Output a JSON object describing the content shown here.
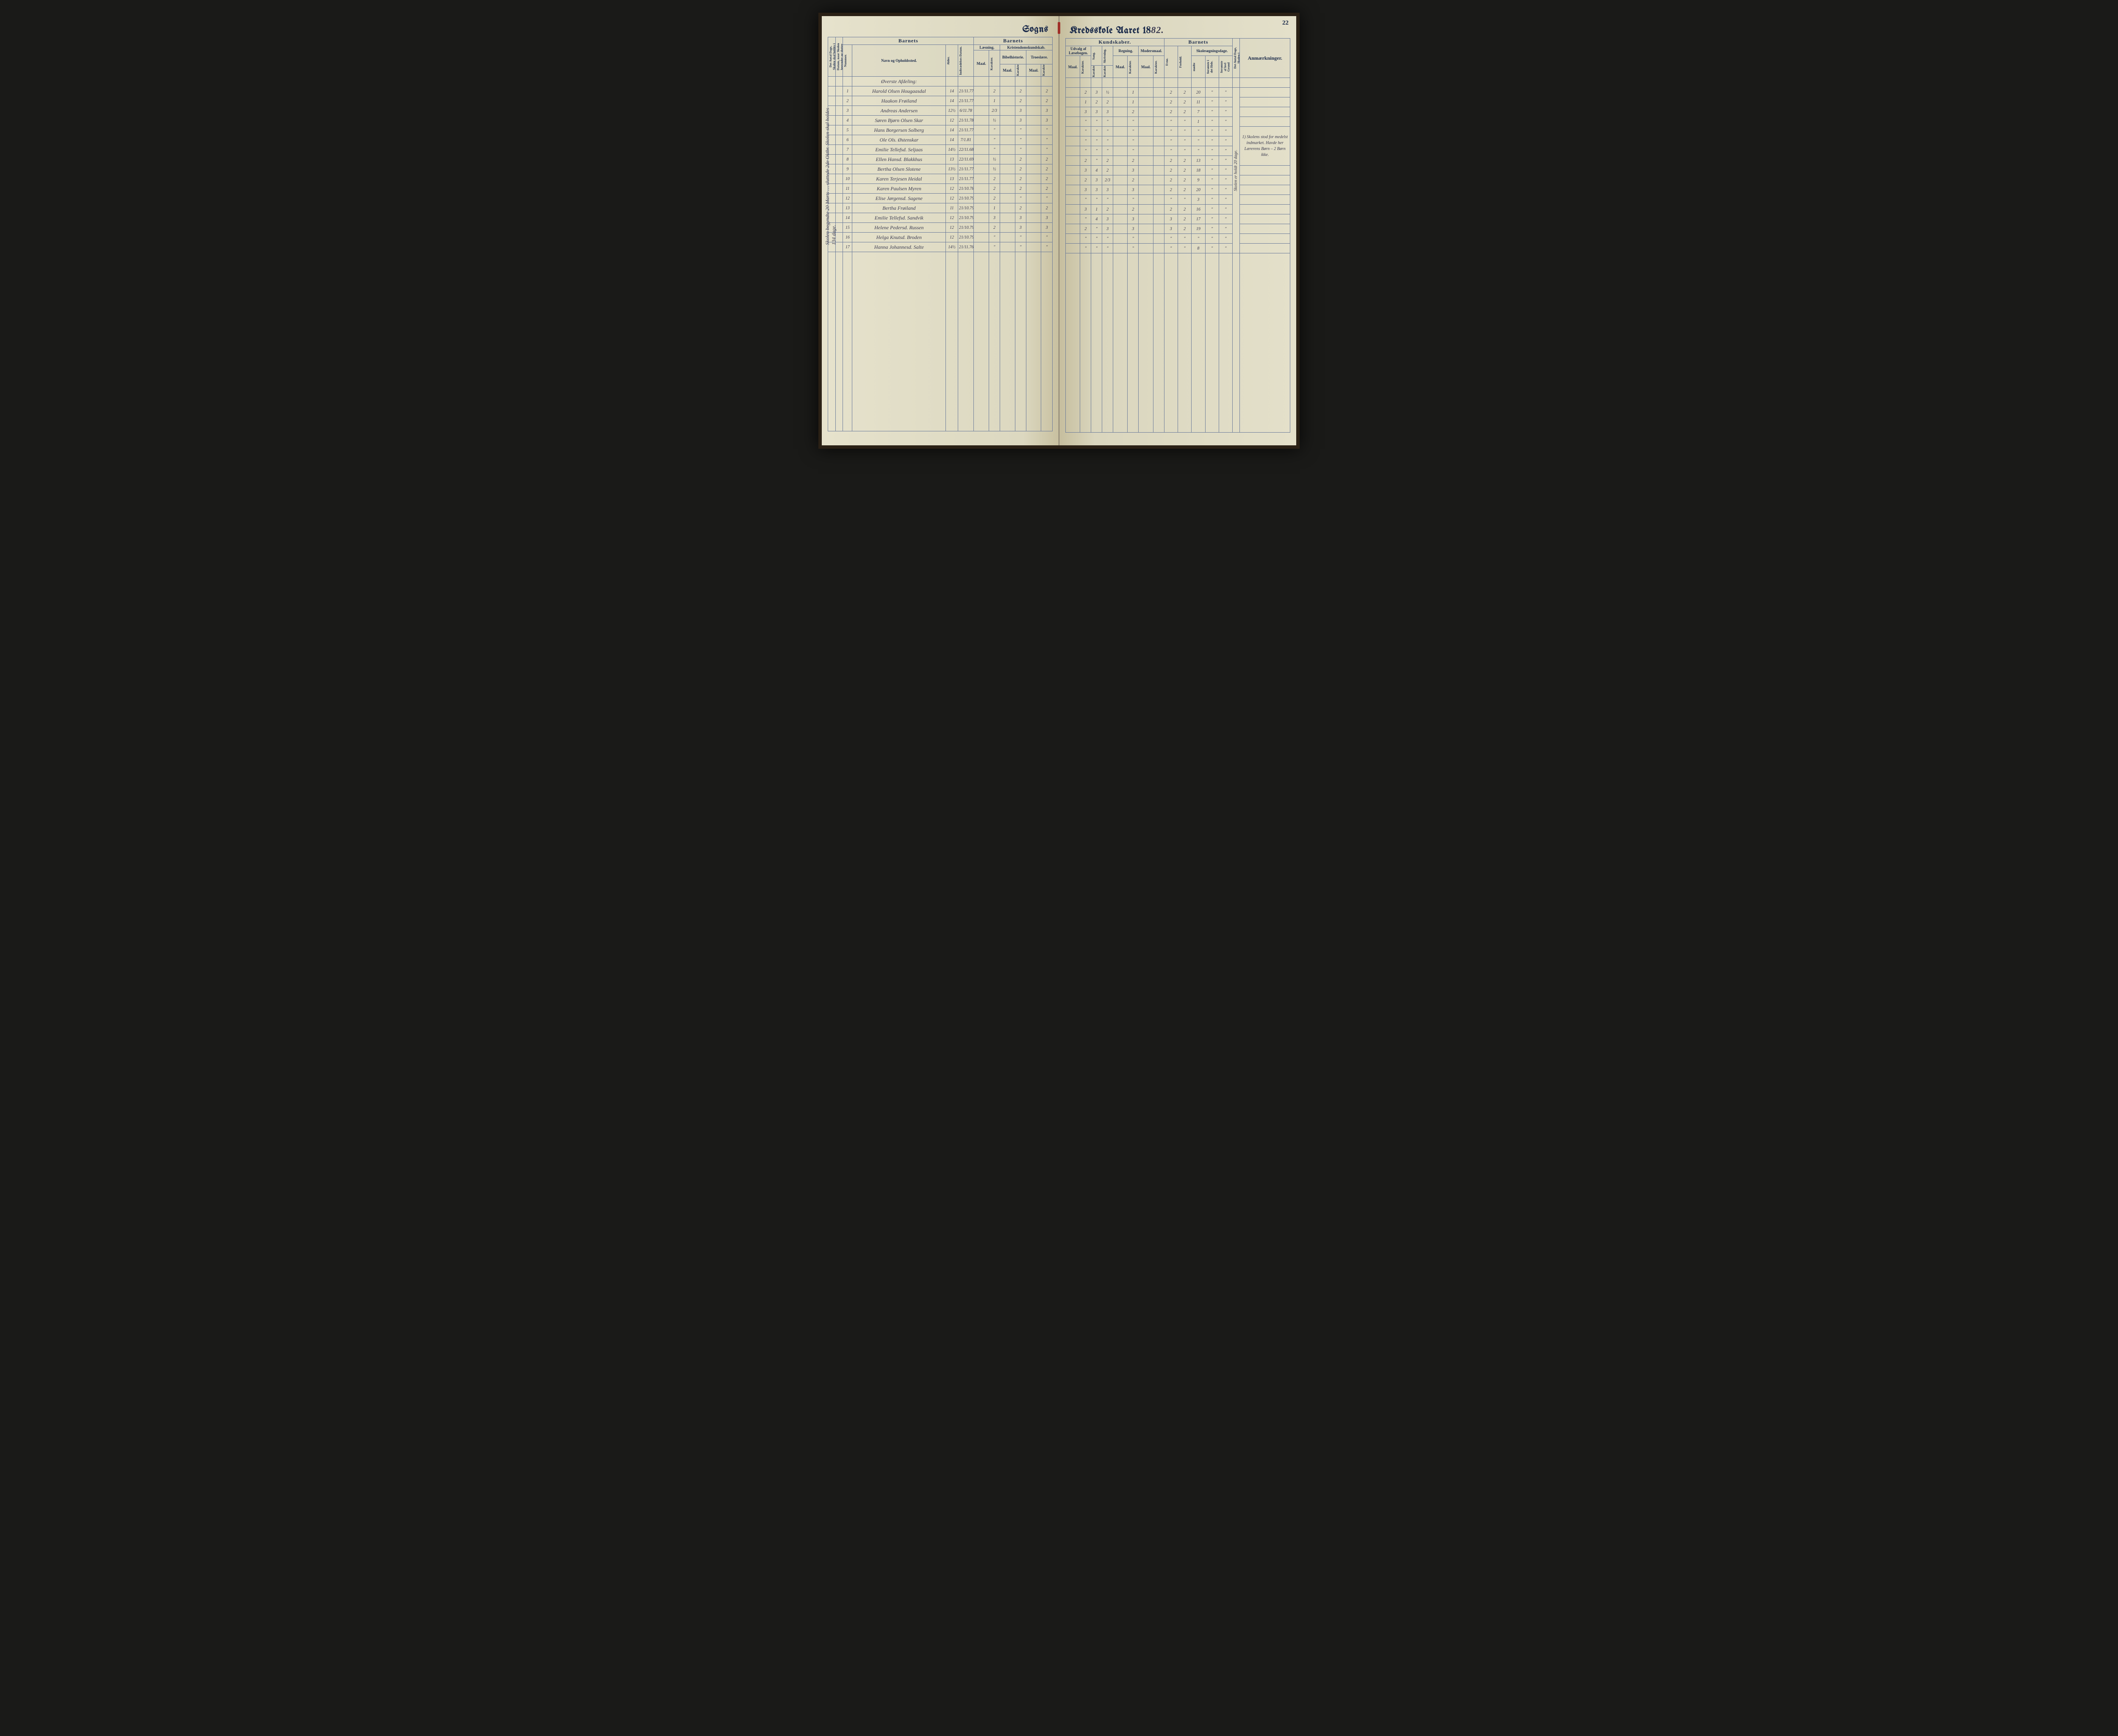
{
  "page_number": "22",
  "title_left": "Sogns",
  "title_right_prefix": "Kredsskole Aaret 18",
  "title_year_suffix": "82.",
  "margin_note_left": "Skolen begyndte 20 Marts … sluttede 2de Oktbr. Skolen skal holdes 134 dage.",
  "colors": {
    "ink_print": "#1a2a4a",
    "ink_hand": "#3a3a50",
    "rule": "#6a7a9a",
    "paper_top": "#e8e4d0",
    "paper_bot": "#d0ccb0",
    "ribbon": "#a03028",
    "desk": "#1a1a18"
  },
  "headers": {
    "left_vcol1": "Det Antal Dage, Skolen skal holdes i Kredsen.",
    "left_vcol2": "Datum, naar Skolen begynder og slutter hver Omgang.",
    "num": "Nummer.",
    "navn": "Navn og Opholdssted.",
    "alder": "Alder.",
    "indtr": "Indtrædelses-Datum.",
    "barnets": "Barnets",
    "laesning": "Læsning.",
    "kristen": "Kristendomskundskab.",
    "bibel": "Bibelhistorie.",
    "troes": "Troeslære.",
    "maal": "Maal.",
    "karakter": "Karakter.",
    "kundskaber": "Kundskaber.",
    "udvalg": "Udvalg af Læsebogen.",
    "sang": "Sang.",
    "skriv": "Skrivning.",
    "regning": "Regning.",
    "modersmaal": "Modersmaal.",
    "evne": "Evne.",
    "forhold": "Forhold.",
    "skoles": "Skolesøgningsdage.",
    "modte": "mødte",
    "fors_hele": "forsømte i det Hele.",
    "fors_lov": "forsømte af lovl Grund",
    "right_v1": "Det Antal Dage, Skolen i Virkeligheden er holdt.",
    "anm": "Anmærkninger."
  },
  "section_row_label": "Øverste Afdeling:",
  "remarks_note": "1) Skolens stod for medelst indmarket. Havde her Lærerens Børn – 2 Børn ikke.",
  "vert_col_note_right": "Skolen er holdt 20 dage.",
  "rows": [
    {
      "n": "1",
      "name": "Harold Olsen Hougaasdal",
      "age": "14",
      "date": "21/11.77",
      "l_m": "",
      "l_k": "2",
      "b_m": "",
      "b_k": "2",
      "t_m": "",
      "t_k": "2",
      "u_m": "",
      "u_k": "2",
      "sang": "3",
      "skr": "½",
      "r_m": "",
      "r_k": "1",
      "mm_m": "",
      "mm_k": "",
      "ev": "2",
      "fo": "2",
      "md": "20",
      "fh": "\"",
      "fl": "\""
    },
    {
      "n": "2",
      "name": "Haakon Frøiland",
      "age": "14",
      "date": "21/11.77",
      "l_m": "",
      "l_k": "1",
      "b_m": "",
      "b_k": "2",
      "t_m": "",
      "t_k": "2",
      "u_m": "",
      "u_k": "1",
      "sang": "2",
      "skr": "2",
      "r_m": "",
      "r_k": "1",
      "mm_m": "",
      "mm_k": "",
      "ev": "2",
      "fo": "2",
      "md": "11",
      "fh": "\"",
      "fl": "\""
    },
    {
      "n": "3",
      "name": "Andreas Andersen",
      "age": "12½",
      "date": "6/11.78",
      "l_m": "",
      "l_k": "2/3",
      "b_m": "",
      "b_k": "3",
      "t_m": "",
      "t_k": "3",
      "u_m": "",
      "u_k": "3",
      "sang": "3",
      "skr": "3",
      "r_m": "",
      "r_k": "2",
      "mm_m": "",
      "mm_k": "",
      "ev": "2",
      "fo": "2",
      "md": "7",
      "fh": "\"",
      "fl": "\""
    },
    {
      "n": "4",
      "name": "Søren Bjørn Olsen Skar",
      "age": "12",
      "date": "21/11.78",
      "l_m": "",
      "l_k": "½",
      "b_m": "",
      "b_k": "3",
      "t_m": "",
      "t_k": "3",
      "u_m": "",
      "u_k": "\"",
      "sang": "\"",
      "skr": "\"",
      "r_m": "",
      "r_k": "\"",
      "mm_m": "",
      "mm_k": "",
      "ev": "\"",
      "fo": "\"",
      "md": "1",
      "fh": "\"",
      "fl": "\""
    },
    {
      "n": "5",
      "name": "Hans Borgersen Solberg",
      "age": "14",
      "date": "21/11.77",
      "l_m": "",
      "l_k": "\"",
      "b_m": "",
      "b_k": "\"",
      "t_m": "",
      "t_k": "\"",
      "u_m": "",
      "u_k": "\"",
      "sang": "\"",
      "skr": "\"",
      "r_m": "",
      "r_k": "\"",
      "mm_m": "",
      "mm_k": "",
      "ev": "\"",
      "fo": "\"",
      "md": "\"",
      "fh": "\"",
      "fl": "\""
    },
    {
      "n": "6",
      "name": "Ole Ols. Østenskar",
      "age": "14",
      "date": "7/1.81",
      "l_m": "",
      "l_k": "\"",
      "b_m": "",
      "b_k": "\"",
      "t_m": "",
      "t_k": "\"",
      "u_m": "",
      "u_k": "\"",
      "sang": "\"",
      "skr": "\"",
      "r_m": "",
      "r_k": "\"",
      "mm_m": "",
      "mm_k": "",
      "ev": "\"",
      "fo": "\"",
      "md": "\"",
      "fh": "\"",
      "fl": "\""
    },
    {
      "n": "7",
      "name": "Emilie Tellefsd. Seljaas",
      "age": "14½",
      "date": "22/11.68",
      "l_m": "",
      "l_k": "\"",
      "b_m": "",
      "b_k": "\"",
      "t_m": "",
      "t_k": "\"",
      "u_m": "",
      "u_k": "\"",
      "sang": "\"",
      "skr": "\"",
      "r_m": "",
      "r_k": "\"",
      "mm_m": "",
      "mm_k": "",
      "ev": "\"",
      "fo": "\"",
      "md": "\"",
      "fh": "\"",
      "fl": "\""
    },
    {
      "n": "8",
      "name": "Ellen Hansd. Blakkhus",
      "age": "13",
      "date": "22/11.69",
      "l_m": "",
      "l_k": "½",
      "b_m": "",
      "b_k": "2",
      "t_m": "",
      "t_k": "2",
      "u_m": "",
      "u_k": "2",
      "sang": "\"",
      "skr": "2",
      "r_m": "",
      "r_k": "2",
      "mm_m": "",
      "mm_k": "",
      "ev": "2",
      "fo": "2",
      "md": "13",
      "fh": "\"",
      "fl": "\""
    },
    {
      "n": "9",
      "name": "Bertha Olsen Slotene",
      "age": "13½",
      "date": "21/11.77",
      "l_m": "",
      "l_k": "½",
      "b_m": "",
      "b_k": "2",
      "t_m": "",
      "t_k": "2",
      "u_m": "",
      "u_k": "3",
      "sang": "4",
      "skr": "2",
      "r_m": "",
      "r_k": "3",
      "mm_m": "",
      "mm_k": "",
      "ev": "2",
      "fo": "2",
      "md": "18",
      "fh": "\"",
      "fl": "\""
    },
    {
      "n": "10",
      "name": "Karen Terjesen Heidal",
      "age": "13",
      "date": "21/11.77",
      "l_m": "",
      "l_k": "2",
      "b_m": "",
      "b_k": "2",
      "t_m": "",
      "t_k": "2",
      "u_m": "",
      "u_k": "2",
      "sang": "3",
      "skr": "2/3",
      "r_m": "",
      "r_k": "2",
      "mm_m": "",
      "mm_k": "",
      "ev": "2",
      "fo": "2",
      "md": "9",
      "fh": "\"",
      "fl": "\""
    },
    {
      "n": "11",
      "name": "Karen Paulsen Myren",
      "age": "12",
      "date": "21/10.78",
      "l_m": "",
      "l_k": "2",
      "b_m": "",
      "b_k": "2",
      "t_m": "",
      "t_k": "2",
      "u_m": "",
      "u_k": "3",
      "sang": "3",
      "skr": "3",
      "r_m": "",
      "r_k": "3",
      "mm_m": "",
      "mm_k": "",
      "ev": "2",
      "fo": "2",
      "md": "20",
      "fh": "\"",
      "fl": "\""
    },
    {
      "n": "12",
      "name": "Elise Jørgensd. Sagene",
      "age": "12",
      "date": "21/10.79",
      "l_m": "",
      "l_k": "2",
      "b_m": "",
      "b_k": "\"",
      "t_m": "",
      "t_k": "\"",
      "u_m": "",
      "u_k": "\"",
      "sang": "\"",
      "skr": "\"",
      "r_m": "",
      "r_k": "\"",
      "mm_m": "",
      "mm_k": "",
      "ev": "\"",
      "fo": "\"",
      "md": "3",
      "fh": "\"",
      "fl": "\""
    },
    {
      "n": "13",
      "name": "Bertha Frøiland",
      "age": "11",
      "date": "21/10.79",
      "l_m": "",
      "l_k": "1",
      "b_m": "",
      "b_k": "2",
      "t_m": "",
      "t_k": "2",
      "u_m": "",
      "u_k": "3",
      "sang": "1",
      "skr": "2",
      "r_m": "",
      "r_k": "2",
      "mm_m": "",
      "mm_k": "",
      "ev": "2",
      "fo": "2",
      "md": "16",
      "fh": "\"",
      "fl": "\""
    },
    {
      "n": "14",
      "name": "Emilie Tellefsd. Sandvik",
      "age": "12",
      "date": "21/10.79",
      "l_m": "",
      "l_k": "3",
      "b_m": "",
      "b_k": "3",
      "t_m": "",
      "t_k": "3",
      "u_m": "",
      "u_k": "\"",
      "sang": "4",
      "skr": "3",
      "r_m": "",
      "r_k": "3",
      "mm_m": "",
      "mm_k": "",
      "ev": "3",
      "fo": "2",
      "md": "17",
      "fh": "\"",
      "fl": "\""
    },
    {
      "n": "15",
      "name": "Helene Pedersd. Russen",
      "age": "12",
      "date": "21/10.79",
      "l_m": "",
      "l_k": "2",
      "b_m": "",
      "b_k": "3",
      "t_m": "",
      "t_k": "3",
      "u_m": "",
      "u_k": "2",
      "sang": "\"",
      "skr": "3",
      "r_m": "",
      "r_k": "3",
      "mm_m": "",
      "mm_k": "",
      "ev": "3",
      "fo": "2",
      "md": "19",
      "fh": "\"",
      "fl": "\""
    },
    {
      "n": "16",
      "name": "Helga Knutsd. Broden",
      "age": "12",
      "date": "21/10.79",
      "l_m": "",
      "l_k": "\"",
      "b_m": "",
      "b_k": "\"",
      "t_m": "",
      "t_k": "\"",
      "u_m": "",
      "u_k": "\"",
      "sang": "\"",
      "skr": "\"",
      "r_m": "",
      "r_k": "\"",
      "mm_m": "",
      "mm_k": "",
      "ev": "\"",
      "fo": "\"",
      "md": "\"",
      "fh": "\"",
      "fl": "\""
    },
    {
      "n": "17",
      "name": "Hanna Johannesd. Salte",
      "age": "14½",
      "date": "21/11.76",
      "l_m": "",
      "l_k": "\"",
      "b_m": "",
      "b_k": "\"",
      "t_m": "",
      "t_k": "\"",
      "u_m": "",
      "u_k": "\"",
      "sang": "\"",
      "skr": "\"",
      "r_m": "",
      "r_k": "\"",
      "mm_m": "",
      "mm_k": "",
      "ev": "\"",
      "fo": "\"",
      "md": "8",
      "fh": "\"",
      "fl": "\""
    }
  ]
}
